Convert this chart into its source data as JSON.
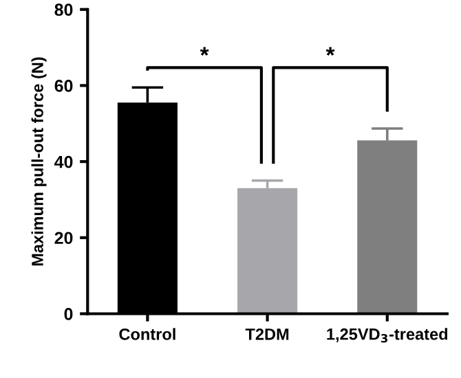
{
  "chart_data": {
    "type": "bar",
    "ylabel": "Maximum pull-out force (N)",
    "categories": [
      "Control",
      "T2DM",
      "1,25VD$_{3}$-treated"
    ],
    "values": [
      55.5,
      33.0,
      45.6
    ],
    "colors": [
      "#000000",
      "#a7a7ab",
      "#7f7f7f"
    ],
    "errors": [
      [
        55.5,
        59.5
      ],
      [
        33.0,
        35.0
      ],
      [
        45.6,
        48.7
      ]
    ],
    "ylim": [
      0,
      80
    ],
    "yticks": [
      0,
      20,
      40,
      60,
      80
    ],
    "grid": false,
    "legend": false,
    "annotations": [
      "*",
      "*"
    ]
  }
}
